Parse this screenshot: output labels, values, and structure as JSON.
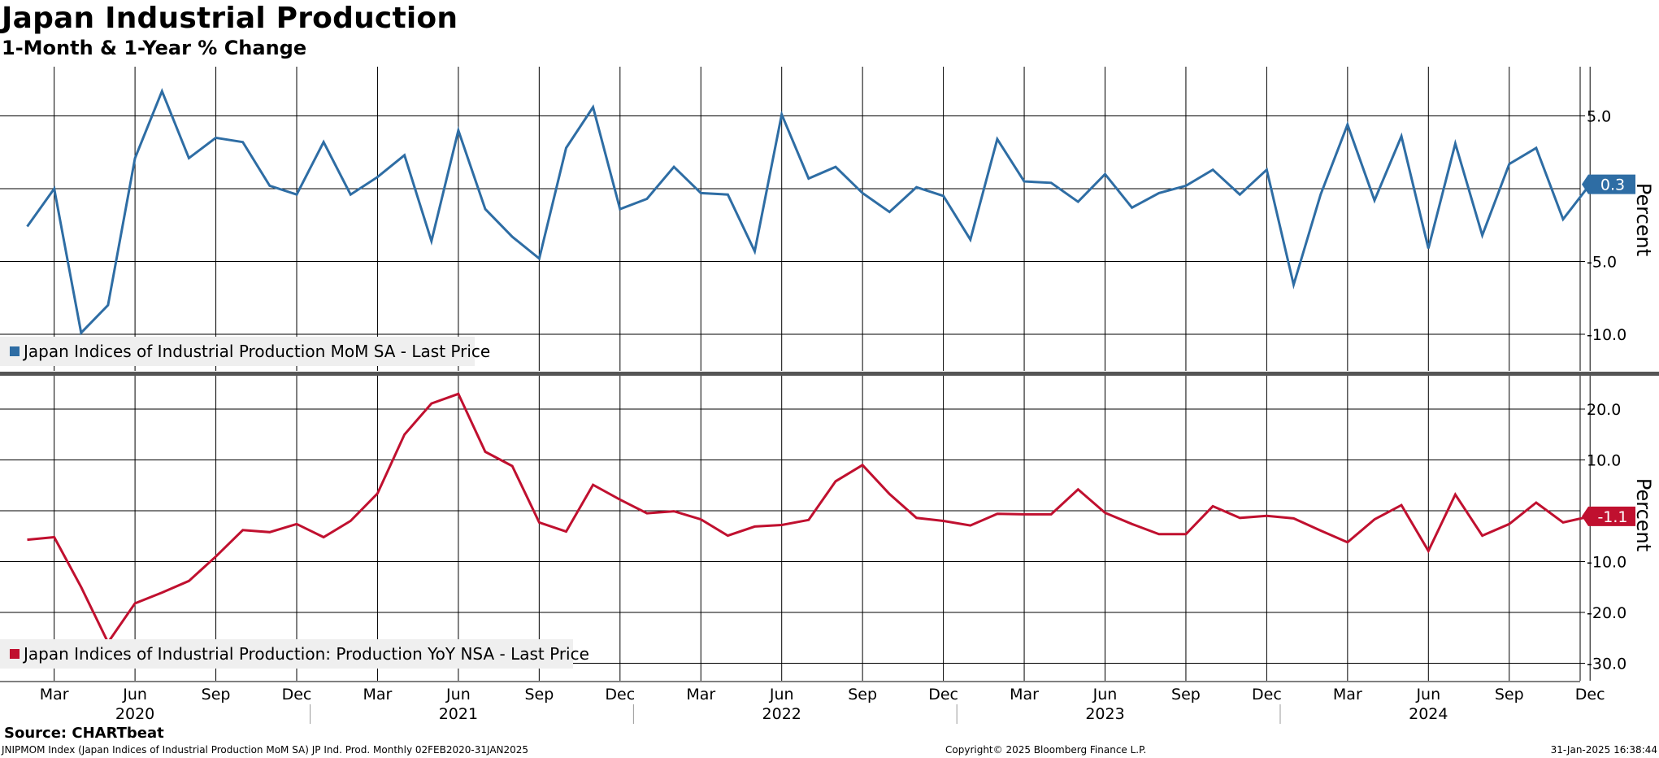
{
  "header": {
    "title": "Japan Industrial Production",
    "subtitle": "1-Month & 1-Year % Change"
  },
  "footer": {
    "source": "Source: CHARTbeat",
    "ticker_info": "JNIPMOM Index (Japan Indices of Industrial Production MoM SA) JP Ind. Prod.  Monthly 02FEB2020-31JAN2025",
    "copyright": "Copyright© 2025 Bloomberg Finance L.P.",
    "timestamp": "31-Jan-2025 16:38:44"
  },
  "colors": {
    "mom": "#2e6da4",
    "yoy": "#c0102f",
    "grid": "#000000",
    "divider": "#555555"
  },
  "chart_data": {
    "type": "line",
    "x_month_labels": [
      "Mar",
      "Jun",
      "Sep",
      "Dec",
      "Mar",
      "Jun",
      "Sep",
      "Dec",
      "Mar",
      "Jun",
      "Sep",
      "Dec",
      "Mar",
      "Jun",
      "Sep",
      "Dec",
      "Mar",
      "Jun",
      "Sep",
      "Dec"
    ],
    "x_year_labels": [
      "2020",
      "2021",
      "2022",
      "2023",
      "2024"
    ],
    "panels": [
      {
        "series_name": "Japan Indices of Industrial Production MoM SA - Last Price",
        "ylabel": "Percent",
        "ylim": [
          -12.5,
          8.5
        ],
        "ticks": [
          "5.0",
          "-5.0",
          "-10.0"
        ],
        "tick_values": [
          5,
          -5,
          -10
        ],
        "gridlines": [
          5,
          0,
          -5,
          -10
        ],
        "last_label": "0.3",
        "last_value": 0.3,
        "x": [
          "2020-02",
          "2020-03",
          "2020-04",
          "2020-05",
          "2020-06",
          "2020-07",
          "2020-08",
          "2020-09",
          "2020-10",
          "2020-11",
          "2020-12",
          "2021-01",
          "2021-02",
          "2021-03",
          "2021-04",
          "2021-05",
          "2021-06",
          "2021-07",
          "2021-08",
          "2021-09",
          "2021-10",
          "2021-11",
          "2021-12",
          "2022-01",
          "2022-02",
          "2022-03",
          "2022-04",
          "2022-05",
          "2022-06",
          "2022-07",
          "2022-08",
          "2022-09",
          "2022-10",
          "2022-11",
          "2022-12",
          "2023-01",
          "2023-02",
          "2023-03",
          "2023-04",
          "2023-05",
          "2023-06",
          "2023-07",
          "2023-08",
          "2023-09",
          "2023-10",
          "2023-11",
          "2023-12",
          "2024-01",
          "2024-02",
          "2024-03",
          "2024-04",
          "2024-05",
          "2024-06",
          "2024-07",
          "2024-08",
          "2024-09",
          "2024-10",
          "2024-11",
          "2024-12"
        ],
        "values": [
          -2.6,
          0.0,
          -9.9,
          -8.0,
          2.1,
          6.7,
          2.1,
          3.5,
          3.2,
          0.2,
          -0.4,
          3.2,
          -0.4,
          0.8,
          2.3,
          -3.6,
          4.0,
          -1.4,
          -3.3,
          -4.8,
          2.8,
          5.6,
          -1.4,
          -0.7,
          1.5,
          -0.3,
          -0.4,
          -4.3,
          5.1,
          0.7,
          1.5,
          -0.3,
          -1.6,
          0.1,
          -0.5,
          -3.5,
          3.4,
          0.5,
          0.4,
          -0.9,
          1.0,
          -1.3,
          -0.3,
          0.2,
          1.3,
          -0.4,
          1.3,
          -6.6,
          -0.4,
          4.4,
          -0.8,
          3.6,
          -4.1,
          3.1,
          -3.2,
          1.7,
          2.8,
          -2.1,
          0.3
        ]
      },
      {
        "series_name": "Japan Indices of Industrial Production: Production YoY NSA - Last Price",
        "ylabel": "Percent",
        "ylim": [
          -33.5,
          27.5
        ],
        "ticks": [
          "20.0",
          "10.0",
          "-10.0",
          "-20.0",
          "-30.0"
        ],
        "tick_values": [
          20,
          10,
          -10,
          -20,
          -30
        ],
        "gridlines": [
          20,
          10,
          0,
          -10,
          -20,
          -30
        ],
        "last_label": "-1.1",
        "last_value": -1.1,
        "x": [
          "2020-02",
          "2020-03",
          "2020-04",
          "2020-05",
          "2020-06",
          "2020-07",
          "2020-08",
          "2020-09",
          "2020-10",
          "2020-11",
          "2020-12",
          "2021-01",
          "2021-02",
          "2021-03",
          "2021-04",
          "2021-05",
          "2021-06",
          "2021-07",
          "2021-08",
          "2021-09",
          "2021-10",
          "2021-11",
          "2021-12",
          "2022-01",
          "2022-02",
          "2022-03",
          "2022-04",
          "2022-05",
          "2022-06",
          "2022-07",
          "2022-08",
          "2022-09",
          "2022-10",
          "2022-11",
          "2022-12",
          "2023-01",
          "2023-02",
          "2023-03",
          "2023-04",
          "2023-05",
          "2023-06",
          "2023-07",
          "2023-08",
          "2023-09",
          "2023-10",
          "2023-11",
          "2023-12",
          "2024-01",
          "2024-02",
          "2024-03",
          "2024-04",
          "2024-05",
          "2024-06",
          "2024-07",
          "2024-08",
          "2024-09",
          "2024-10",
          "2024-11",
          "2024-12"
        ],
        "values": [
          -5.7,
          -5.2,
          -15.0,
          -25.9,
          -18.2,
          -16.1,
          -13.8,
          -9.0,
          -3.8,
          -4.2,
          -2.6,
          -5.2,
          -2.0,
          3.4,
          15.0,
          21.1,
          23.0,
          11.6,
          8.8,
          -2.3,
          -4.1,
          5.1,
          2.2,
          -0.5,
          -0.1,
          -1.7,
          -4.9,
          -3.1,
          -2.8,
          -1.8,
          5.8,
          9.0,
          3.3,
          -1.4,
          -2.0,
          -2.9,
          -0.6,
          -0.7,
          -0.7,
          4.2,
          -0.4,
          -2.6,
          -4.6,
          -4.6,
          0.9,
          -1.4,
          -1.0,
          -1.5,
          -3.9,
          -6.2,
          -1.7,
          1.1,
          -7.9,
          3.2,
          -4.9,
          -2.6,
          1.6,
          -2.3,
          -1.1
        ]
      }
    ]
  }
}
